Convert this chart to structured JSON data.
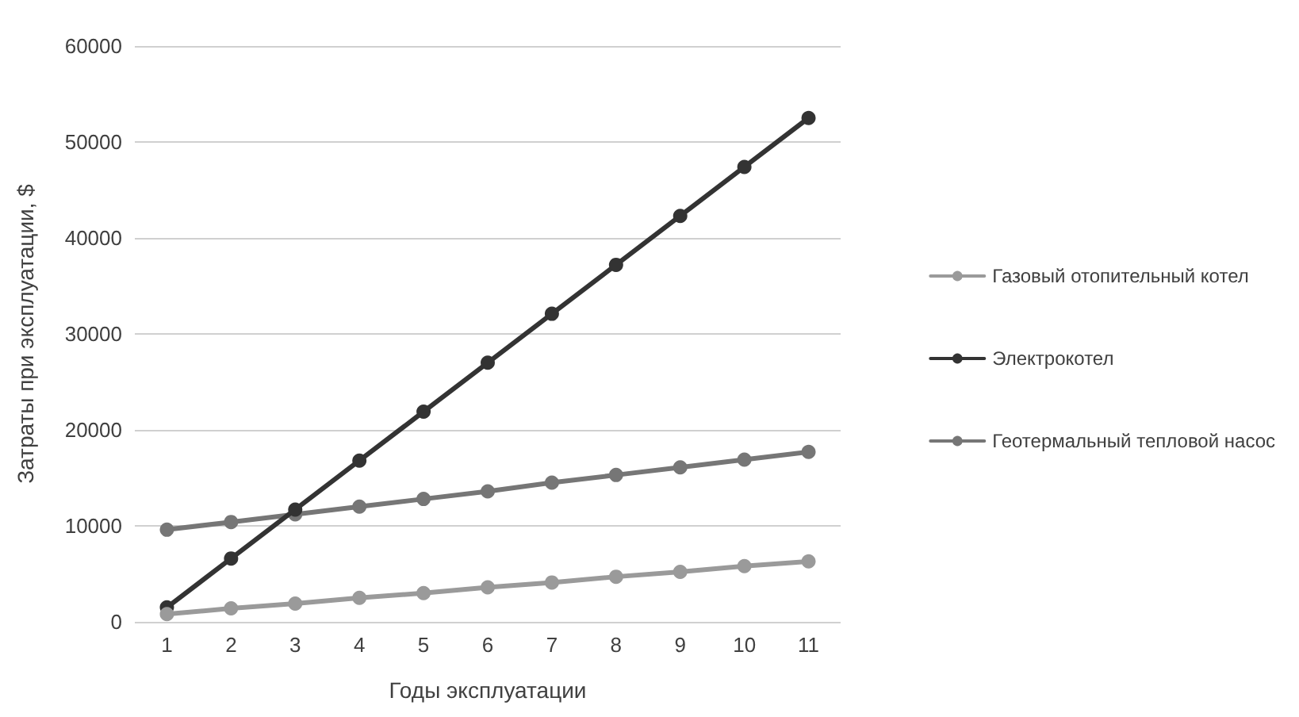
{
  "chart_data": {
    "type": "line",
    "xlabel": "Годы эксплуатации",
    "ylabel": "Затраты при эксплуатации, $",
    "categories": [
      "1",
      "2",
      "3",
      "4",
      "5",
      "6",
      "7",
      "8",
      "9",
      "10",
      "11"
    ],
    "series": [
      {
        "name": "Газовый отопительный котел",
        "color": "#9a9a9a",
        "values": [
          800,
          1400,
          1900,
          2500,
          3000,
          3600,
          4100,
          4700,
          5200,
          5800,
          6300
        ]
      },
      {
        "name": "Электрокотел",
        "color": "#333333",
        "values": [
          1500,
          6600,
          11700,
          16800,
          21900,
          27000,
          32100,
          37200,
          42300,
          47400,
          52500
        ]
      },
      {
        "name": "Геотермальный тепловой насос",
        "color": "#767676",
        "values": [
          9600,
          10400,
          11200,
          12000,
          12800,
          13600,
          14500,
          15300,
          16100,
          16900,
          17700
        ]
      }
    ],
    "ylim": [
      0,
      60000
    ],
    "yticks": [
      0,
      10000,
      20000,
      30000,
      40000,
      50000,
      60000
    ],
    "grid": "y",
    "legend": "right",
    "marker": "circle",
    "line_style": "solid"
  }
}
